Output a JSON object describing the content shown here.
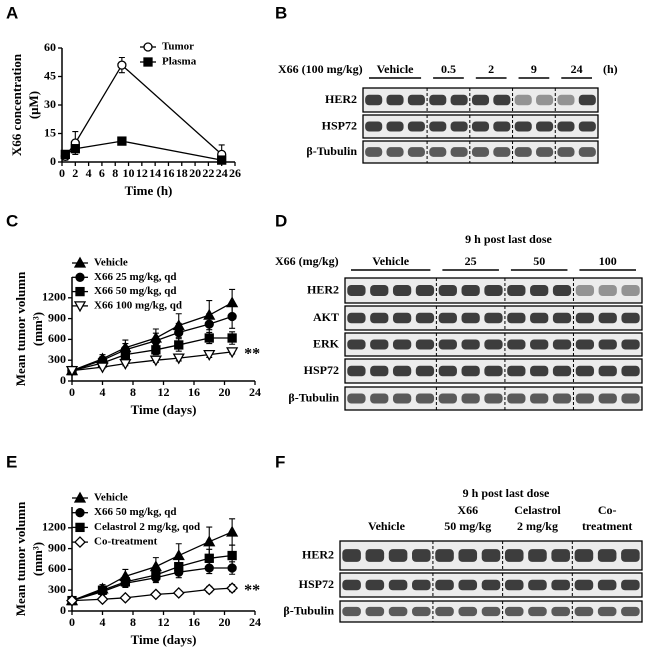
{
  "panel_letters": [
    "A",
    "B",
    "C",
    "D",
    "E",
    "F"
  ],
  "chart_data": [
    {
      "type": "line",
      "x_label": "Time (h)",
      "y_label": [
        "X66 concentration",
        "(μM)"
      ],
      "x": [
        0.5,
        2,
        9,
        24
      ],
      "series": [
        {
          "name": "Tumor",
          "color": "#000000",
          "marker": "circle-open",
          "values": [
            3,
            10,
            51,
            4
          ],
          "errors": [
            2,
            6,
            4,
            5
          ]
        },
        {
          "name": "Plasma",
          "color": "#000000",
          "marker": "square",
          "values": [
            4,
            7,
            11,
            1
          ],
          "errors": [
            1,
            2,
            1,
            1
          ]
        }
      ],
      "xlim": [
        0,
        26
      ],
      "xticks": [
        0,
        2,
        4,
        6,
        8,
        10,
        12,
        14,
        16,
        18,
        20,
        22,
        24,
        26
      ],
      "ylim": [
        0,
        60
      ],
      "yticks": [
        0,
        15,
        30,
        45,
        60
      ]
    },
    {
      "type": "line",
      "x_label": "Time (days)",
      "y_label": [
        "Mean tumor volumn",
        "(mm³)"
      ],
      "annotation": "**",
      "x": [
        0,
        4,
        7,
        11,
        14,
        18,
        21
      ],
      "series": [
        {
          "name": "Vehicle",
          "color": "#000000",
          "marker": "triangle",
          "values": [
            150,
            320,
            480,
            620,
            800,
            950,
            1130
          ],
          "errors": [
            20,
            60,
            110,
            130,
            170,
            210,
            190
          ]
        },
        {
          "name": "X66 25 mg/kg, qd",
          "color": "#000000",
          "marker": "circle",
          "values": [
            150,
            300,
            450,
            580,
            700,
            820,
            930
          ],
          "errors": [
            20,
            50,
            90,
            110,
            130,
            150,
            170
          ]
        },
        {
          "name": "X66 50 mg/kg, qd",
          "color": "#000000",
          "marker": "square",
          "values": [
            150,
            260,
            380,
            450,
            520,
            620,
            620
          ],
          "errors": [
            20,
            40,
            60,
            70,
            90,
            80,
            90
          ]
        },
        {
          "name": "X66 100 mg/kg, qd",
          "color": "#000000",
          "marker": "triangle-down-open",
          "values": [
            150,
            200,
            250,
            300,
            330,
            380,
            420
          ],
          "errors": [
            15,
            20,
            30,
            30,
            40,
            40,
            30
          ]
        }
      ],
      "xlim": [
        0,
        24
      ],
      "xticks": [
        0,
        4,
        8,
        12,
        16,
        20,
        24
      ],
      "ylim": [
        0,
        1500
      ],
      "yticks": [
        0,
        300,
        600,
        900,
        1200
      ]
    },
    {
      "type": "line",
      "x_label": "Time (days)",
      "y_label": [
        "Mean tumor volumn",
        "(mm³)"
      ],
      "annotation": "**",
      "x": [
        0,
        4,
        7,
        11,
        14,
        18,
        21
      ],
      "series": [
        {
          "name": "Vehicle",
          "color": "#000000",
          "marker": "triangle",
          "values": [
            150,
            320,
            500,
            640,
            800,
            1000,
            1140
          ],
          "errors": [
            20,
            60,
            100,
            130,
            170,
            210,
            190
          ]
        },
        {
          "name": "X66 50 mg/kg, qd",
          "color": "#000000",
          "marker": "circle",
          "values": [
            150,
            280,
            400,
            480,
            560,
            620,
            620
          ],
          "errors": [
            20,
            40,
            60,
            70,
            80,
            80,
            90
          ]
        },
        {
          "name": "Celastrol 2 mg/kg, qod",
          "color": "#000000",
          "marker": "square",
          "values": [
            150,
            300,
            420,
            520,
            640,
            760,
            800
          ],
          "errors": [
            20,
            50,
            70,
            90,
            110,
            130,
            150
          ]
        },
        {
          "name": "Co-treatment",
          "color": "#000000",
          "marker": "diamond-open",
          "values": [
            150,
            170,
            190,
            240,
            260,
            310,
            330
          ],
          "errors": [
            15,
            20,
            25,
            30,
            35,
            45,
            50
          ]
        }
      ],
      "xlim": [
        0,
        24
      ],
      "xticks": [
        0,
        4,
        8,
        12,
        16,
        20,
        24
      ],
      "ylim": [
        0,
        1500
      ],
      "yticks": [
        0,
        300,
        600,
        900,
        1200
      ]
    }
  ],
  "blots": [
    {
      "header": "X66 (100 mg/kg)",
      "unit": "(h)",
      "groups": [
        [
          "Vehicle"
        ],
        [
          "0.5"
        ],
        [
          "2"
        ],
        [
          "9"
        ],
        [
          "24"
        ]
      ],
      "rows": [
        "HER2",
        "HSP72",
        "β-Tubulin"
      ]
    },
    {
      "title": "9 h post last dose",
      "header": "X66 (mg/kg)",
      "groups": [
        [
          "Vehicle"
        ],
        [
          "25"
        ],
        [
          "50"
        ],
        [
          "100"
        ]
      ],
      "rows": [
        "HER2",
        "AKT",
        "ERK",
        "HSP72",
        "β-Tubulin"
      ]
    },
    {
      "title": "9 h post last dose",
      "groups": [
        [
          "Vehicle"
        ],
        [
          "X66",
          "50 mg/kg"
        ],
        [
          "Celastrol",
          "2 mg/kg"
        ],
        [
          "Co-",
          "treatment"
        ]
      ],
      "rows": [
        "HER2",
        "HSP72",
        "β-Tubulin"
      ]
    }
  ]
}
